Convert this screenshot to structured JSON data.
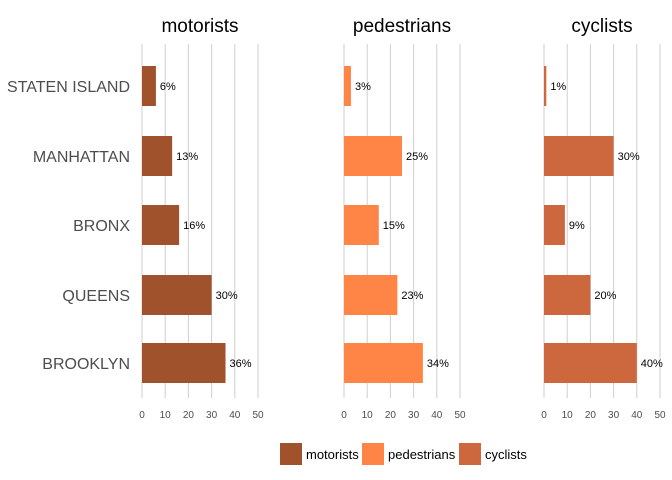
{
  "chart_data": {
    "type": "bar",
    "orientation": "horizontal",
    "grid": true,
    "legend_position": "bottom",
    "categories": [
      "STATEN ISLAND",
      "MANHATTAN",
      "BRONX",
      "QUEENS",
      "BROOKLYN"
    ],
    "xlim": [
      0,
      50
    ],
    "xticks": [
      0,
      10,
      20,
      30,
      40,
      50
    ],
    "series": [
      {
        "name": "motorists",
        "color": "#a0522d",
        "values": [
          6,
          13,
          16,
          30,
          36
        ],
        "labels": [
          "6%",
          "13%",
          "16%",
          "30%",
          "36%"
        ]
      },
      {
        "name": "pedestrians",
        "color": "#ff8547",
        "values": [
          3,
          25,
          15,
          23,
          34
        ],
        "labels": [
          "3%",
          "25%",
          "15%",
          "23%",
          "34%"
        ]
      },
      {
        "name": "cyclists",
        "color": "#cd673d",
        "values": [
          1,
          30,
          9,
          20,
          40
        ],
        "labels": [
          "1%",
          "30%",
          "9%",
          "20%",
          "40%"
        ]
      }
    ]
  }
}
